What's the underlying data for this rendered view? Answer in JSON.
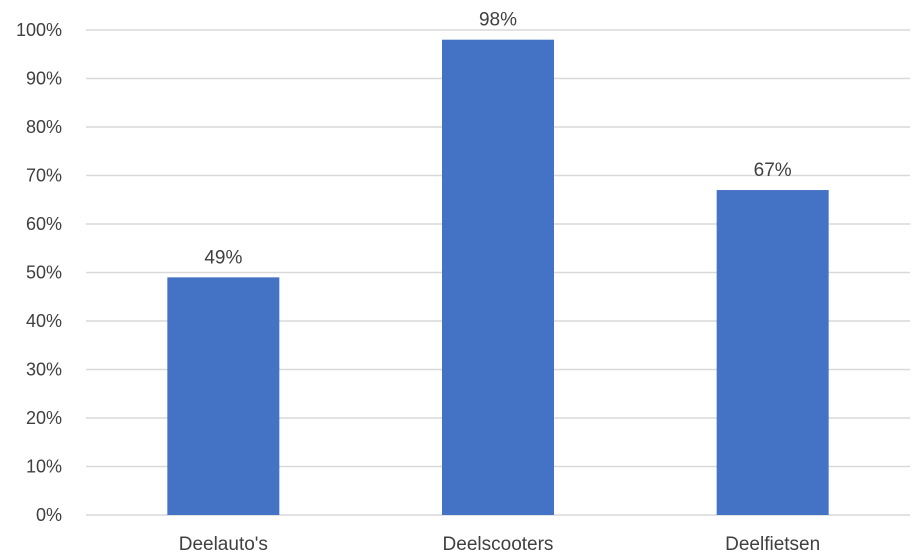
{
  "chart_data": {
    "type": "bar",
    "categories": [
      "Deelauto's",
      "Deelscooters",
      "Deelfietsen"
    ],
    "values": [
      0.49,
      0.98,
      0.67
    ],
    "data_labels": [
      "49%",
      "98%",
      "67%"
    ],
    "y_ticks": [
      0,
      0.1,
      0.2,
      0.3,
      0.4,
      0.5,
      0.6,
      0.7,
      0.8,
      0.9,
      1.0
    ],
    "y_tick_labels": [
      "0%",
      "10%",
      "20%",
      "30%",
      "40%",
      "50%",
      "60%",
      "70%",
      "80%",
      "90%",
      "100%"
    ],
    "ylim": [
      0,
      1.0
    ],
    "grid": true,
    "legend": "none",
    "bar_color": "#4472C4",
    "title": "",
    "xlabel": "",
    "ylabel": ""
  }
}
